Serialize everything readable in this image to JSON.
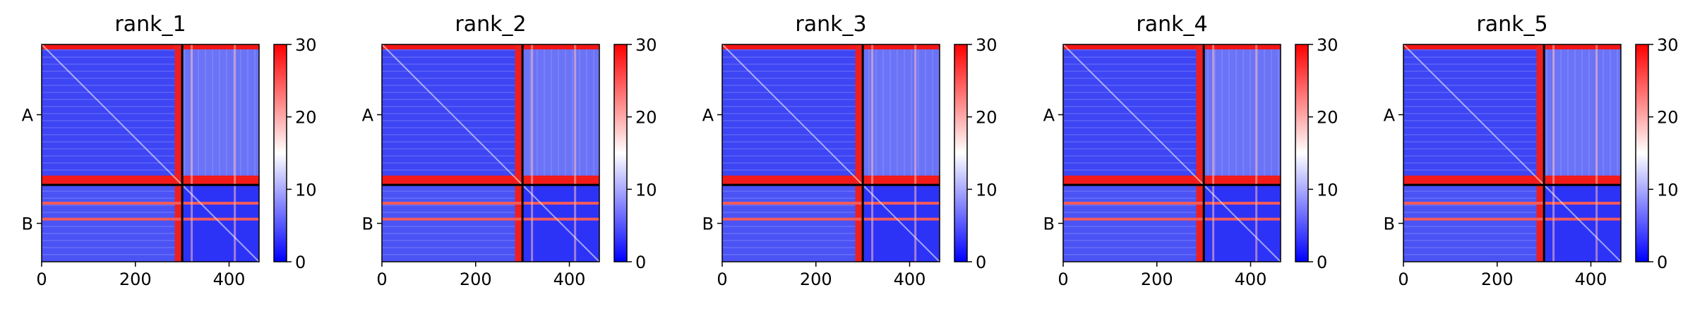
{
  "chart_data": [
    {
      "type": "heatmap",
      "title": "rank_1",
      "chains": [
        {
          "label": "A",
          "start": 0,
          "end": 300
        },
        {
          "label": "B",
          "start": 300,
          "end": 464
        }
      ],
      "xlim": [
        0,
        464
      ],
      "xticks": [
        0,
        200,
        400
      ],
      "colorbar": {
        "min": 0,
        "max": 30,
        "ticks": [
          0,
          10,
          20,
          30
        ],
        "colormap": "bwr"
      }
    },
    {
      "type": "heatmap",
      "title": "rank_2",
      "chains": [
        {
          "label": "A",
          "start": 0,
          "end": 300
        },
        {
          "label": "B",
          "start": 300,
          "end": 464
        }
      ],
      "xlim": [
        0,
        464
      ],
      "xticks": [
        0,
        200,
        400
      ],
      "colorbar": {
        "min": 0,
        "max": 30,
        "ticks": [
          0,
          10,
          20,
          30
        ],
        "colormap": "bwr"
      }
    },
    {
      "type": "heatmap",
      "title": "rank_3",
      "chains": [
        {
          "label": "A",
          "start": 0,
          "end": 300
        },
        {
          "label": "B",
          "start": 300,
          "end": 464
        }
      ],
      "xlim": [
        0,
        464
      ],
      "xticks": [
        0,
        200,
        400
      ],
      "colorbar": {
        "min": 0,
        "max": 30,
        "ticks": [
          0,
          10,
          20,
          30
        ],
        "colormap": "bwr"
      }
    },
    {
      "type": "heatmap",
      "title": "rank_4",
      "chains": [
        {
          "label": "A",
          "start": 0,
          "end": 300
        },
        {
          "label": "B",
          "start": 300,
          "end": 464
        }
      ],
      "xlim": [
        0,
        464
      ],
      "xticks": [
        0,
        200,
        400
      ],
      "colorbar": {
        "min": 0,
        "max": 30,
        "ticks": [
          0,
          10,
          20,
          30
        ],
        "colormap": "bwr"
      }
    },
    {
      "type": "heatmap",
      "title": "rank_5",
      "chains": [
        {
          "label": "A",
          "start": 0,
          "end": 300
        },
        {
          "label": "B",
          "start": 300,
          "end": 464
        }
      ],
      "xlim": [
        0,
        464
      ],
      "xticks": [
        0,
        200,
        400
      ],
      "colorbar": {
        "min": 0,
        "max": 30,
        "ticks": [
          0,
          10,
          20,
          30
        ],
        "colormap": "bwr"
      }
    }
  ]
}
